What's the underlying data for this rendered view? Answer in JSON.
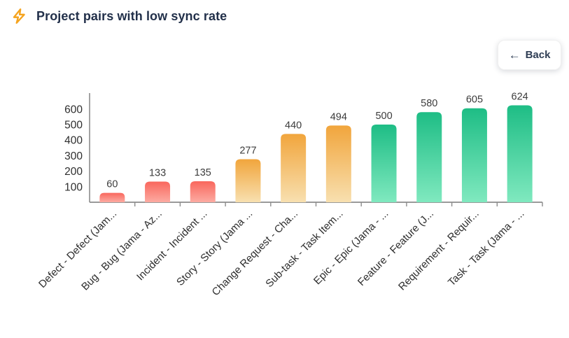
{
  "header": {
    "title": "Project pairs with low sync rate",
    "icon_color": "#f5a41f",
    "back_button": {
      "arrow": "←",
      "label": "Back"
    }
  },
  "chart_data": {
    "type": "bar",
    "title": "Project pairs with low sync rate",
    "categories": [
      "Defect - Defect (Jam...",
      "Bug - Bug (Jama - Az...",
      "Incident - Incident ...",
      "Story - Story (Jama ...",
      "Change Request - Cha...",
      "Sub-task - Task Item...",
      "Epic - Epic (Jama - ...",
      "Feature - Feature (J...",
      "Requirement - Requir...",
      "Task - Task (Jama - ..."
    ],
    "values": [
      60,
      133,
      135,
      277,
      440,
      494,
      500,
      580,
      605,
      624
    ],
    "bar_color_group": [
      "red",
      "red",
      "red",
      "orange",
      "orange",
      "orange",
      "green",
      "green",
      "green",
      "green"
    ],
    "bar_groups": {
      "red": {
        "top": "#f9675d",
        "bottom": "#fcaba2"
      },
      "orange": {
        "top": "#f1a53c",
        "bottom": "#f8e0b0"
      },
      "green": {
        "top": "#1ebd85",
        "bottom": "#80e9bf"
      }
    },
    "yticks": [
      100,
      200,
      300,
      400,
      500,
      600
    ],
    "ylim": [
      0,
      650
    ],
    "grid": false,
    "legend": false,
    "xlabel": "",
    "ylabel": "",
    "axis_color": "#8c8c8c",
    "text_color": "#2e2e2e",
    "value_label_color": "#3c3c3c"
  },
  "colors": {
    "title_text": "#22304a",
    "back_text": "#2e3d54",
    "background": "#ffffff"
  }
}
